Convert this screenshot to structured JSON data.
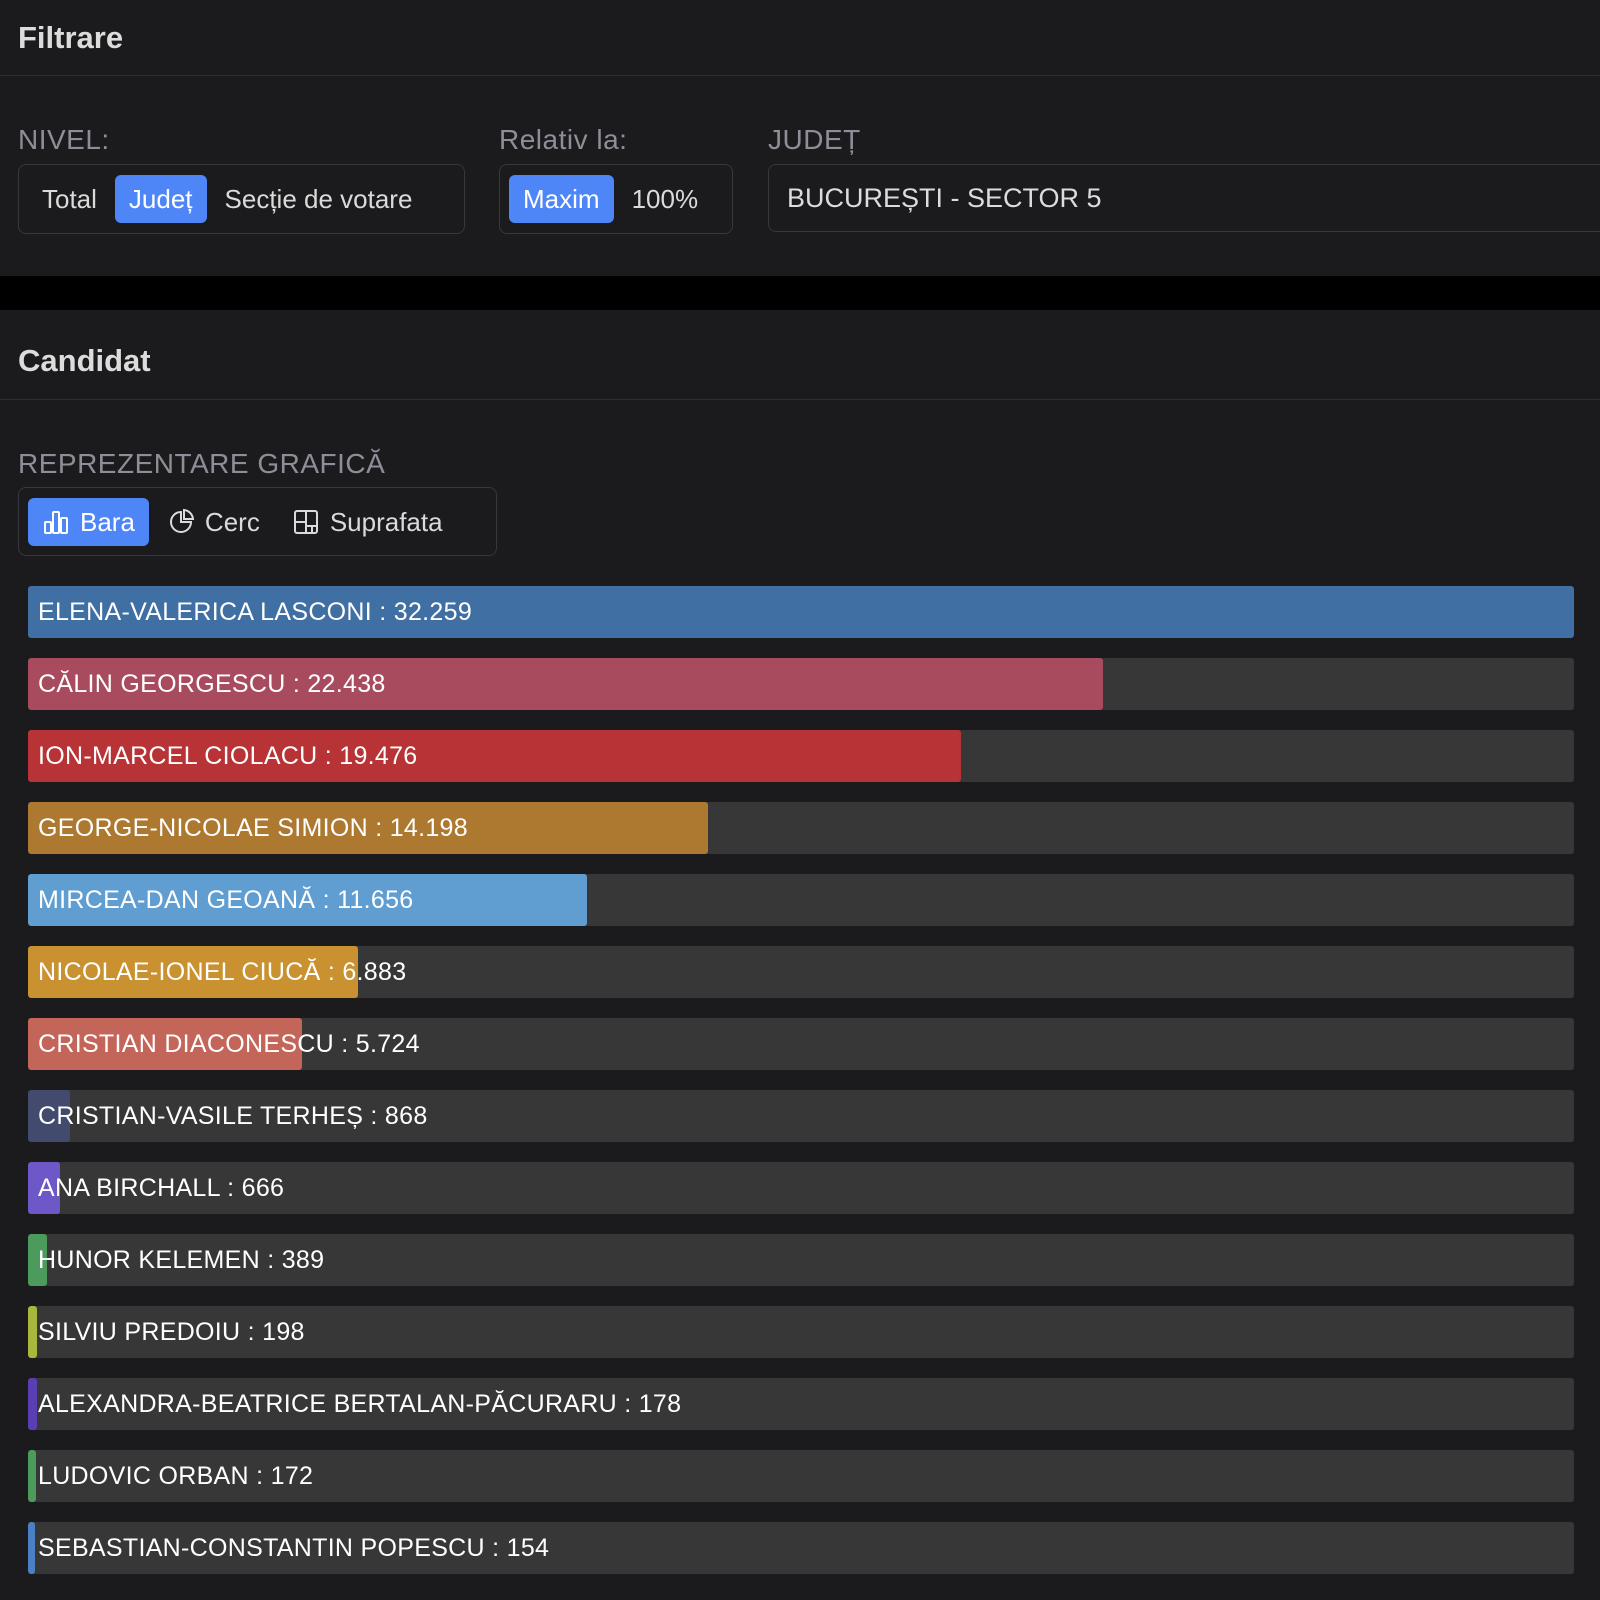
{
  "filter_panel": {
    "title": "Filtrare",
    "nivel": {
      "label": "NIVEL:",
      "options": [
        "Total",
        "Județ",
        "Secție de votare"
      ],
      "selected": "Județ"
    },
    "relativ": {
      "label": "Relativ la:",
      "options": [
        "Maxim",
        "100%"
      ],
      "selected": "Maxim"
    },
    "judet": {
      "label": "JUDEȚ",
      "value": "BUCUREȘTI - SECTOR 5"
    }
  },
  "candidate_panel": {
    "title": "Candidat",
    "representation": {
      "label": "REPREZENTARE GRAFICĂ",
      "options": [
        {
          "label": "Bara",
          "icon": "bar-chart-icon"
        },
        {
          "label": "Cerc",
          "icon": "pie-chart-icon"
        },
        {
          "label": "Suprafata",
          "icon": "treemap-icon"
        }
      ],
      "selected": "Bara"
    }
  },
  "chart_data": {
    "type": "bar",
    "orientation": "horizontal",
    "relative_to": "Maxim",
    "bars": [
      {
        "label": "ELENA-VALERICA LASCONI : 32.259",
        "value": 32259,
        "color": "#406fa3"
      },
      {
        "label": "CĂLIN GEORGESCU : 22.438",
        "value": 22438,
        "color": "#a84b5e"
      },
      {
        "label": "ION-MARCEL CIOLACU : 19.476",
        "value": 19476,
        "color": "#b83335"
      },
      {
        "label": "GEORGE-NICOLAE SIMION : 14.198",
        "value": 14198,
        "color": "#ad7930"
      },
      {
        "label": "MIRCEA-DAN GEOANĂ : 11.656",
        "value": 11656,
        "color": "#609ed1"
      },
      {
        "label": "NICOLAE-IONEL CIUCĂ : 6.883",
        "value": 6883,
        "color": "#c99130"
      },
      {
        "label": "CRISTIAN DIACONESCU : 5.724",
        "value": 5724,
        "color": "#c4655a"
      },
      {
        "label": "CRISTIAN-VASILE TERHEȘ : 868",
        "value": 868,
        "color": "#424a6e"
      },
      {
        "label": "ANA BIRCHALL : 666",
        "value": 666,
        "color": "#6e58c8"
      },
      {
        "label": "HUNOR KELEMEN : 389",
        "value": 389,
        "color": "#4c9b5c"
      },
      {
        "label": "SILVIU PREDOIU : 198",
        "value": 198,
        "color": "#a9b73d"
      },
      {
        "label": "ALEXANDRA-BEATRICE BERTALAN-PĂCURARU : 178",
        "value": 178,
        "color": "#5a3fb2"
      },
      {
        "label": "LUDOVIC ORBAN : 172",
        "value": 172,
        "color": "#4c9b5c"
      },
      {
        "label": "SEBASTIAN-CONSTANTIN POPESCU : 154",
        "value": 154,
        "color": "#4a80c4"
      }
    ]
  }
}
